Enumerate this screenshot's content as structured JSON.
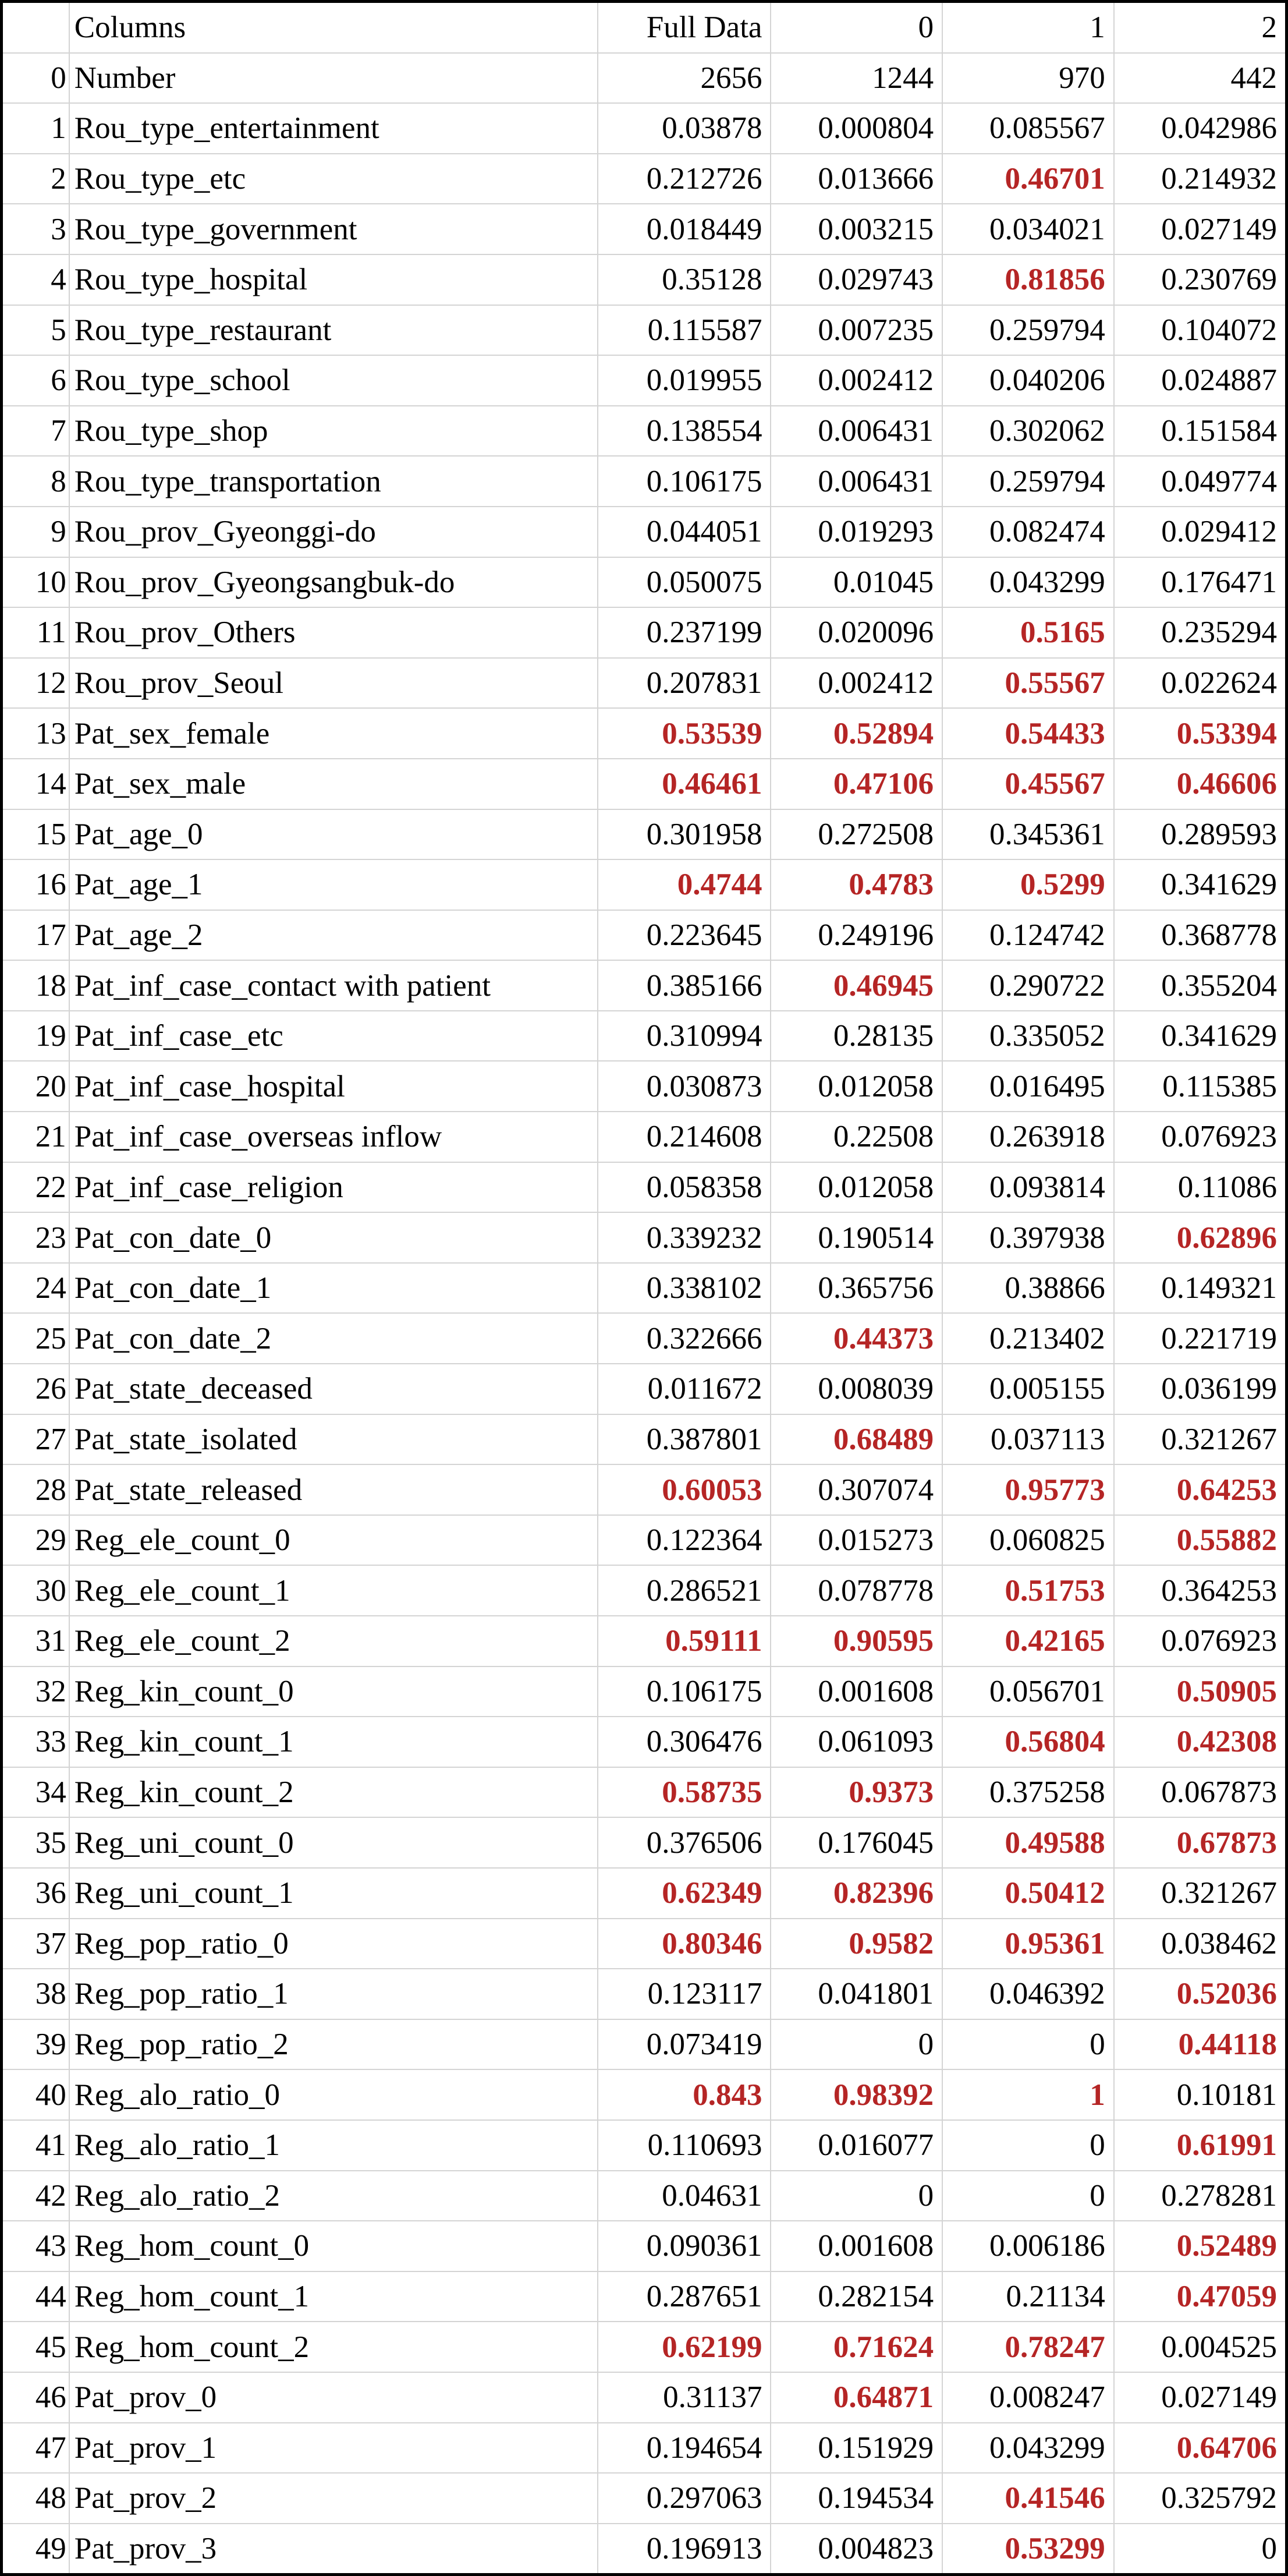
{
  "table": {
    "header": [
      "",
      "Columns",
      "Full Data",
      "0",
      "1",
      "2"
    ],
    "rows": [
      {
        "idx": "0",
        "name": "Number",
        "vals": [
          "2656",
          "1244",
          "970",
          "442"
        ],
        "hl": [
          false,
          false,
          false,
          false
        ]
      },
      {
        "idx": "1",
        "name": "Rou_type_entertainment",
        "vals": [
          "0.03878",
          "0.000804",
          "0.085567",
          "0.042986"
        ],
        "hl": [
          false,
          false,
          false,
          false
        ]
      },
      {
        "idx": "2",
        "name": "Rou_type_etc",
        "vals": [
          "0.212726",
          "0.013666",
          "0.46701",
          "0.214932"
        ],
        "hl": [
          false,
          false,
          true,
          false
        ]
      },
      {
        "idx": "3",
        "name": "Rou_type_government",
        "vals": [
          "0.018449",
          "0.003215",
          "0.034021",
          "0.027149"
        ],
        "hl": [
          false,
          false,
          false,
          false
        ]
      },
      {
        "idx": "4",
        "name": "Rou_type_hospital",
        "vals": [
          "0.35128",
          "0.029743",
          "0.81856",
          "0.230769"
        ],
        "hl": [
          false,
          false,
          true,
          false
        ]
      },
      {
        "idx": "5",
        "name": "Rou_type_restaurant",
        "vals": [
          "0.115587",
          "0.007235",
          "0.259794",
          "0.104072"
        ],
        "hl": [
          false,
          false,
          false,
          false
        ]
      },
      {
        "idx": "6",
        "name": "Rou_type_school",
        "vals": [
          "0.019955",
          "0.002412",
          "0.040206",
          "0.024887"
        ],
        "hl": [
          false,
          false,
          false,
          false
        ]
      },
      {
        "idx": "7",
        "name": "Rou_type_shop",
        "vals": [
          "0.138554",
          "0.006431",
          "0.302062",
          "0.151584"
        ],
        "hl": [
          false,
          false,
          false,
          false
        ]
      },
      {
        "idx": "8",
        "name": "Rou_type_transportation",
        "vals": [
          "0.106175",
          "0.006431",
          "0.259794",
          "0.049774"
        ],
        "hl": [
          false,
          false,
          false,
          false
        ]
      },
      {
        "idx": "9",
        "name": "Rou_prov_Gyeonggi-do",
        "vals": [
          "0.044051",
          "0.019293",
          "0.082474",
          "0.029412"
        ],
        "hl": [
          false,
          false,
          false,
          false
        ]
      },
      {
        "idx": "10",
        "name": "Rou_prov_Gyeongsangbuk-do",
        "vals": [
          "0.050075",
          "0.01045",
          "0.043299",
          "0.176471"
        ],
        "hl": [
          false,
          false,
          false,
          false
        ]
      },
      {
        "idx": "11",
        "name": "Rou_prov_Others",
        "vals": [
          "0.237199",
          "0.020096",
          "0.5165",
          "0.235294"
        ],
        "hl": [
          false,
          false,
          true,
          false
        ]
      },
      {
        "idx": "12",
        "name": "Rou_prov_Seoul",
        "vals": [
          "0.207831",
          "0.002412",
          "0.55567",
          "0.022624"
        ],
        "hl": [
          false,
          false,
          true,
          false
        ]
      },
      {
        "idx": "13",
        "name": "Pat_sex_female",
        "vals": [
          "0.53539",
          "0.52894",
          "0.54433",
          "0.53394"
        ],
        "hl": [
          true,
          true,
          true,
          true
        ]
      },
      {
        "idx": "14",
        "name": "Pat_sex_male",
        "vals": [
          "0.46461",
          "0.47106",
          "0.45567",
          "0.46606"
        ],
        "hl": [
          true,
          true,
          true,
          true
        ]
      },
      {
        "idx": "15",
        "name": "Pat_age_0",
        "vals": [
          "0.301958",
          "0.272508",
          "0.345361",
          "0.289593"
        ],
        "hl": [
          false,
          false,
          false,
          false
        ]
      },
      {
        "idx": "16",
        "name": "Pat_age_1",
        "vals": [
          "0.4744",
          "0.4783",
          "0.5299",
          "0.341629"
        ],
        "hl": [
          true,
          true,
          true,
          false
        ]
      },
      {
        "idx": "17",
        "name": "Pat_age_2",
        "vals": [
          "0.223645",
          "0.249196",
          "0.124742",
          "0.368778"
        ],
        "hl": [
          false,
          false,
          false,
          false
        ]
      },
      {
        "idx": "18",
        "name": "Pat_inf_case_contact with patient",
        "vals": [
          "0.385166",
          "0.46945",
          "0.290722",
          "0.355204"
        ],
        "hl": [
          false,
          true,
          false,
          false
        ]
      },
      {
        "idx": "19",
        "name": "Pat_inf_case_etc",
        "vals": [
          "0.310994",
          "0.28135",
          "0.335052",
          "0.341629"
        ],
        "hl": [
          false,
          false,
          false,
          false
        ]
      },
      {
        "idx": "20",
        "name": "Pat_inf_case_hospital",
        "vals": [
          "0.030873",
          "0.012058",
          "0.016495",
          "0.115385"
        ],
        "hl": [
          false,
          false,
          false,
          false
        ]
      },
      {
        "idx": "21",
        "name": "Pat_inf_case_overseas inflow",
        "vals": [
          "0.214608",
          "0.22508",
          "0.263918",
          "0.076923"
        ],
        "hl": [
          false,
          false,
          false,
          false
        ]
      },
      {
        "idx": "22",
        "name": "Pat_inf_case_religion",
        "vals": [
          "0.058358",
          "0.012058",
          "0.093814",
          "0.11086"
        ],
        "hl": [
          false,
          false,
          false,
          false
        ]
      },
      {
        "idx": "23",
        "name": "Pat_con_date_0",
        "vals": [
          "0.339232",
          "0.190514",
          "0.397938",
          "0.62896"
        ],
        "hl": [
          false,
          false,
          false,
          true
        ]
      },
      {
        "idx": "24",
        "name": "Pat_con_date_1",
        "vals": [
          "0.338102",
          "0.365756",
          "0.38866",
          "0.149321"
        ],
        "hl": [
          false,
          false,
          false,
          false
        ]
      },
      {
        "idx": "25",
        "name": "Pat_con_date_2",
        "vals": [
          "0.322666",
          "0.44373",
          "0.213402",
          "0.221719"
        ],
        "hl": [
          false,
          true,
          false,
          false
        ]
      },
      {
        "idx": "26",
        "name": "Pat_state_deceased",
        "vals": [
          "0.011672",
          "0.008039",
          "0.005155",
          "0.036199"
        ],
        "hl": [
          false,
          false,
          false,
          false
        ]
      },
      {
        "idx": "27",
        "name": "Pat_state_isolated",
        "vals": [
          "0.387801",
          "0.68489",
          "0.037113",
          "0.321267"
        ],
        "hl": [
          false,
          true,
          false,
          false
        ]
      },
      {
        "idx": "28",
        "name": "Pat_state_released",
        "vals": [
          "0.60053",
          "0.307074",
          "0.95773",
          "0.64253"
        ],
        "hl": [
          true,
          false,
          true,
          true
        ]
      },
      {
        "idx": "29",
        "name": "Reg_ele_count_0",
        "vals": [
          "0.122364",
          "0.015273",
          "0.060825",
          "0.55882"
        ],
        "hl": [
          false,
          false,
          false,
          true
        ]
      },
      {
        "idx": "30",
        "name": "Reg_ele_count_1",
        "vals": [
          "0.286521",
          "0.078778",
          "0.51753",
          "0.364253"
        ],
        "hl": [
          false,
          false,
          true,
          false
        ]
      },
      {
        "idx": "31",
        "name": "Reg_ele_count_2",
        "vals": [
          "0.59111",
          "0.90595",
          "0.42165",
          "0.076923"
        ],
        "hl": [
          true,
          true,
          true,
          false
        ]
      },
      {
        "idx": "32",
        "name": "Reg_kin_count_0",
        "vals": [
          "0.106175",
          "0.001608",
          "0.056701",
          "0.50905"
        ],
        "hl": [
          false,
          false,
          false,
          true
        ]
      },
      {
        "idx": "33",
        "name": "Reg_kin_count_1",
        "vals": [
          "0.306476",
          "0.061093",
          "0.56804",
          "0.42308"
        ],
        "hl": [
          false,
          false,
          true,
          true
        ]
      },
      {
        "idx": "34",
        "name": "Reg_kin_count_2",
        "vals": [
          "0.58735",
          "0.9373",
          "0.375258",
          "0.067873"
        ],
        "hl": [
          true,
          true,
          false,
          false
        ]
      },
      {
        "idx": "35",
        "name": "Reg_uni_count_0",
        "vals": [
          "0.376506",
          "0.176045",
          "0.49588",
          "0.67873"
        ],
        "hl": [
          false,
          false,
          true,
          true
        ]
      },
      {
        "idx": "36",
        "name": "Reg_uni_count_1",
        "vals": [
          "0.62349",
          "0.82396",
          "0.50412",
          "0.321267"
        ],
        "hl": [
          true,
          true,
          true,
          false
        ]
      },
      {
        "idx": "37",
        "name": "Reg_pop_ratio_0",
        "vals": [
          "0.80346",
          "0.9582",
          "0.95361",
          "0.038462"
        ],
        "hl": [
          true,
          true,
          true,
          false
        ]
      },
      {
        "idx": "38",
        "name": "Reg_pop_ratio_1",
        "vals": [
          "0.123117",
          "0.041801",
          "0.046392",
          "0.52036"
        ],
        "hl": [
          false,
          false,
          false,
          true
        ]
      },
      {
        "idx": "39",
        "name": "Reg_pop_ratio_2",
        "vals": [
          "0.073419",
          "0",
          "0",
          "0.44118"
        ],
        "hl": [
          false,
          false,
          false,
          true
        ]
      },
      {
        "idx": "40",
        "name": "Reg_alo_ratio_0",
        "vals": [
          "0.843",
          "0.98392",
          "1",
          "0.10181"
        ],
        "hl": [
          true,
          true,
          true,
          false
        ]
      },
      {
        "idx": "41",
        "name": "Reg_alo_ratio_1",
        "vals": [
          "0.110693",
          "0.016077",
          "0",
          "0.61991"
        ],
        "hl": [
          false,
          false,
          false,
          true
        ]
      },
      {
        "idx": "42",
        "name": "Reg_alo_ratio_2",
        "vals": [
          "0.04631",
          "0",
          "0",
          "0.278281"
        ],
        "hl": [
          false,
          false,
          false,
          false
        ]
      },
      {
        "idx": "43",
        "name": "Reg_hom_count_0",
        "vals": [
          "0.090361",
          "0.001608",
          "0.006186",
          "0.52489"
        ],
        "hl": [
          false,
          false,
          false,
          true
        ]
      },
      {
        "idx": "44",
        "name": "Reg_hom_count_1",
        "vals": [
          "0.287651",
          "0.282154",
          "0.21134",
          "0.47059"
        ],
        "hl": [
          false,
          false,
          false,
          true
        ]
      },
      {
        "idx": "45",
        "name": "Reg_hom_count_2",
        "vals": [
          "0.62199",
          "0.71624",
          "0.78247",
          "0.004525"
        ],
        "hl": [
          true,
          true,
          true,
          false
        ]
      },
      {
        "idx": "46",
        "name": "Pat_prov_0",
        "vals": [
          "0.31137",
          "0.64871",
          "0.008247",
          "0.027149"
        ],
        "hl": [
          false,
          true,
          false,
          false
        ]
      },
      {
        "idx": "47",
        "name": "Pat_prov_1",
        "vals": [
          "0.194654",
          "0.151929",
          "0.043299",
          "0.64706"
        ],
        "hl": [
          false,
          false,
          false,
          true
        ]
      },
      {
        "idx": "48",
        "name": "Pat_prov_2",
        "vals": [
          "0.297063",
          "0.194534",
          "0.41546",
          "0.325792"
        ],
        "hl": [
          false,
          false,
          true,
          false
        ]
      },
      {
        "idx": "49",
        "name": "Pat_prov_3",
        "vals": [
          "0.196913",
          "0.004823",
          "0.53299",
          "0"
        ],
        "hl": [
          false,
          false,
          true,
          false
        ]
      }
    ]
  },
  "colors": {
    "highlight": "#b52525",
    "text": "#000000",
    "grid": "#d4d4d4",
    "border": "#000000"
  }
}
